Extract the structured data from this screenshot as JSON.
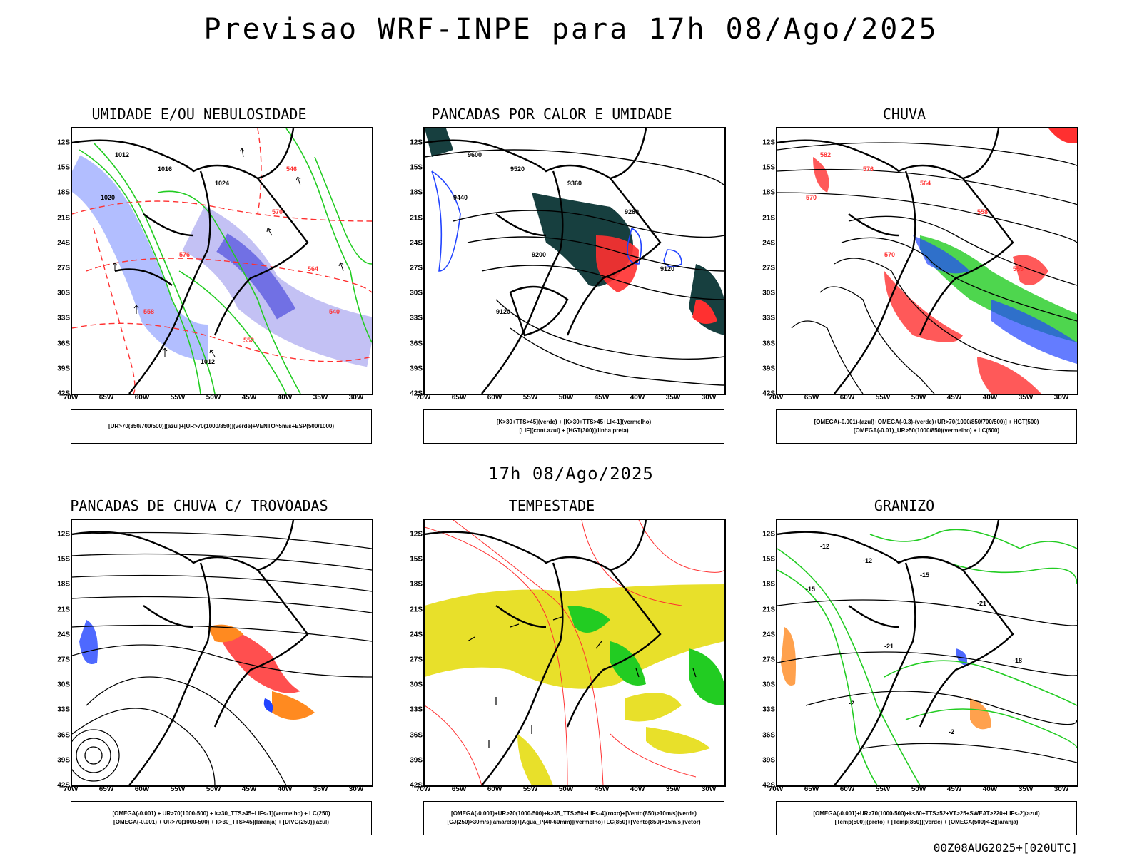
{
  "main_title": "Previsao WRF-INPE  para 17h 08/Ago/2025",
  "mid_title": "17h 08/Ago/2025",
  "footer_stamp": "00Z08AUG2025+[020UTC]",
  "lat_labels": [
    "12S",
    "15S",
    "18S",
    "21S",
    "24S",
    "27S",
    "30S",
    "33S",
    "36S",
    "39S",
    "42S"
  ],
  "lon_labels": [
    "70W",
    "65W",
    "60W",
    "55W",
    "50W",
    "45W",
    "40W",
    "35W",
    "30W"
  ],
  "panels": [
    {
      "title": "UMIDADE E/OU NEBULOSIDADE",
      "legend": [
        "[UR>70(850/700/500)](azul)+[UR>70(1000/850)](verde)+VENTO>5m/s+ESP(500/1000)"
      ],
      "labels": [
        "1012",
        "1016",
        "1020",
        "1024",
        "570",
        "576",
        "564",
        "558",
        "552",
        "546",
        "540",
        "1012"
      ]
    },
    {
      "title": "PANCADAS POR CALOR E UMIDADE",
      "legend": [
        "[K>30+TTS>45](verde) + [K>30+TTS>45+LI<-1](vermelho)",
        "[LIF](cont.azul) + [HGT(300)](linha preta)"
      ],
      "labels": [
        "9600",
        "9520",
        "9440",
        "9360",
        "9280",
        "9200",
        "9120",
        "9120"
      ]
    },
    {
      "title": "CHUVA",
      "legend": [
        "[OMEGA(-0.001)-(azul)+OMEGA(-0.3)-(verde)+UR>70(1000/850/700/500)] + HGT(500)",
        "[OMEGA(-0.01)_UR>50(1000/850)(vermelho) + LC(500)"
      ],
      "labels": [
        "582",
        "576",
        "570",
        "564",
        "558",
        "570",
        "555"
      ]
    },
    {
      "title": "PANCADAS DE CHUVA C/ TROVOADAS",
      "legend": [
        "[OMEGA(-0.001) + UR>70(1000-500) + k>30_TTS>45+LIF<-1](vermelho) + LC(250)",
        "[OMEGA(-0.001) + UR>70(1000-500) + k>30_TTS>45](laranja) + [DIVG(250)](azul)"
      ],
      "labels": []
    },
    {
      "title": "TEMPESTADE",
      "legend": [
        "[OMEGA(-0.001)+UR>70(1000-500)+k>35_TTS>50+LIF<-4](roxo)+[Vento(850)>10m/s](verde)",
        "[CJ(250)>30m/s](amarelo)+[Agua_P(40-60mm)](vermelho)+LC(850)+[Vento(850)>15m/s](vetor)"
      ],
      "labels": []
    },
    {
      "title": "GRANIZO",
      "legend": [
        "[OMEGA(-0.001)+UR>70(1000-500)+k<60+TTS>52+VT>25+SWEAT>220+LIF<-2](azul)",
        "[Temp(500)](preto) + [Temp(850)](verde) + [OMEGA(500)<-2](laranja)"
      ],
      "labels": [
        "-12",
        "-12",
        "-15",
        "-15",
        "-21",
        "-21",
        "-18",
        "-2",
        "-2"
      ]
    }
  ],
  "colors": {
    "black": "#000000",
    "red": "#ff3030",
    "green": "#22cc22",
    "blue": "#2244ff",
    "lavender": "#a9a6ef",
    "darkteal": "#173f3f",
    "yellow": "#e8e02a",
    "orange": "#ff8a20",
    "lightred": "#ff6060"
  }
}
